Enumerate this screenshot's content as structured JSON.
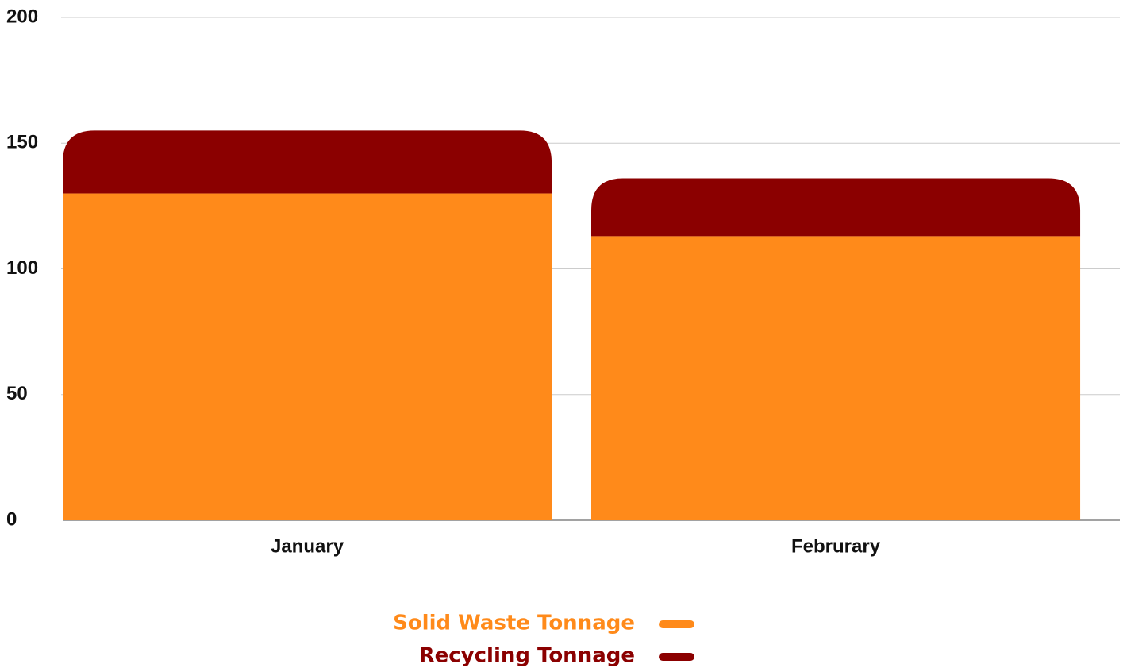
{
  "chart_data": {
    "type": "stacked_bar",
    "categories": [
      "January",
      "Februrary"
    ],
    "series": [
      {
        "name": "Solid Waste Tonnage",
        "color": "#ff8a1a",
        "values": [
          130,
          113
        ]
      },
      {
        "name": "Recycling Tonnage",
        "color": "#8b0000",
        "values": [
          25,
          23
        ]
      }
    ],
    "ylim": [
      0,
      200
    ],
    "yticks": [
      0,
      50,
      100,
      150,
      200
    ],
    "grid": true,
    "legend": "bottom"
  }
}
